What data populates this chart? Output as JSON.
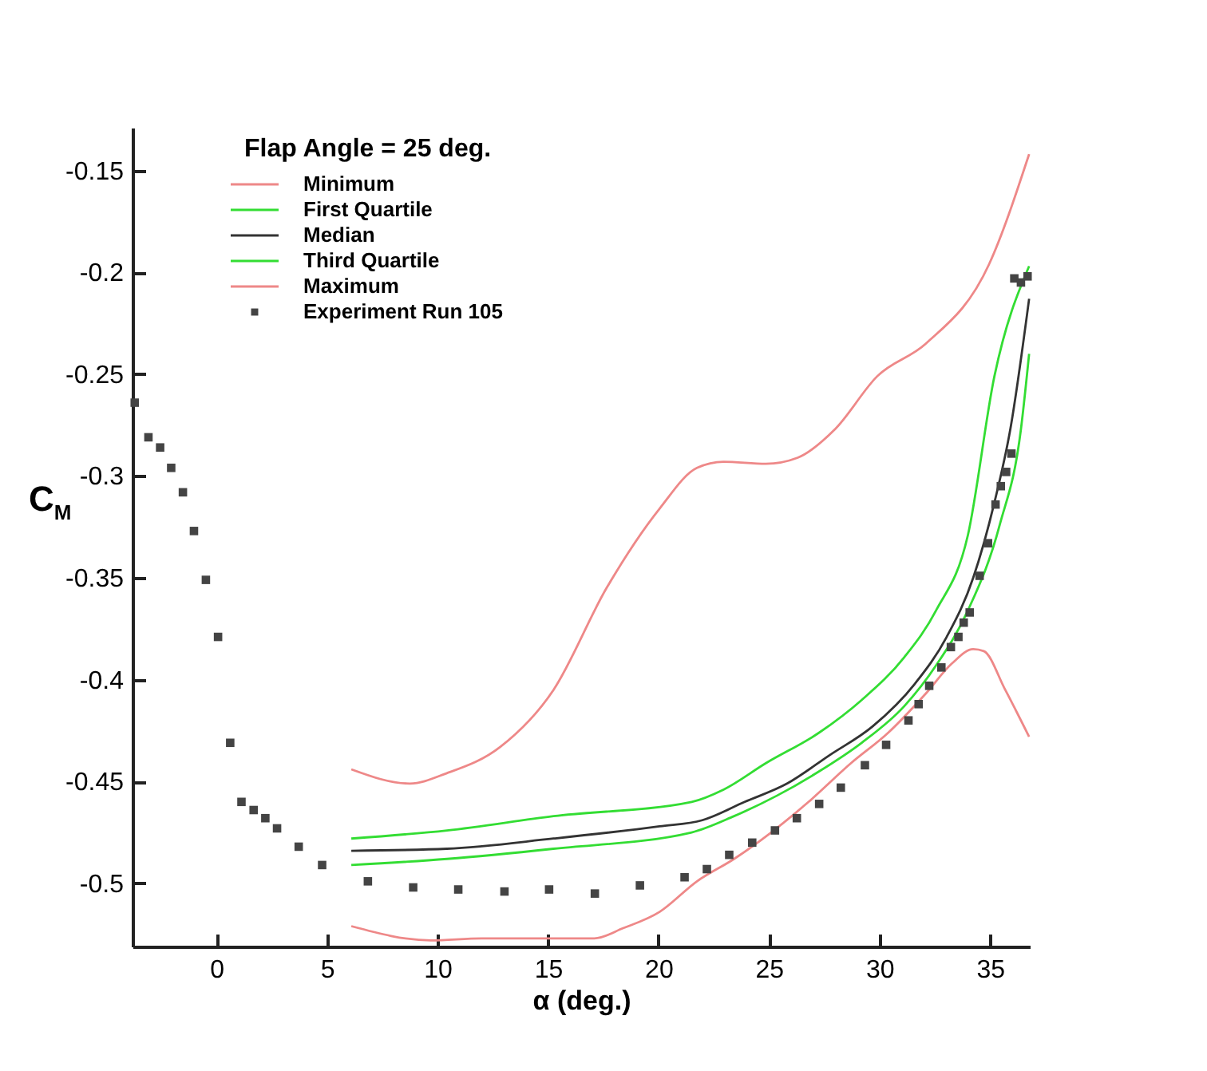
{
  "chart_data": {
    "type": "line",
    "legend_title": "Flap Angle = 25 deg.",
    "xlabel": "α (deg.)",
    "ylabel": "C$_{M}$",
    "xlim": [
      -3.8,
      36.8
    ],
    "ylim": [
      -0.531,
      -0.129
    ],
    "xticks": [
      0,
      5,
      10,
      15,
      20,
      25,
      30,
      35
    ],
    "yticks": [
      -0.5,
      -0.45,
      -0.4,
      -0.35,
      -0.3,
      -0.25,
      -0.2,
      -0.15
    ],
    "grid": false,
    "legend": "top left",
    "series": [
      {
        "name": "Minimum",
        "color": "#ee8888",
        "marker": "none",
        "x": [
          6.1,
          9.7,
          12,
          15,
          17.1,
          18.4,
          20.05,
          21.74,
          23.42,
          25.1,
          26.79,
          28.71,
          30.4,
          32.08,
          33.28,
          34.24,
          34.72,
          35.69,
          36.77
        ],
        "values": [
          -0.521,
          -0.528,
          -0.527,
          -0.527,
          -0.527,
          -0.522,
          -0.514,
          -0.499,
          -0.488,
          -0.475,
          -0.46,
          -0.441,
          -0.426,
          -0.407,
          -0.392,
          -0.385,
          -0.386,
          -0.405,
          -0.428
        ]
      },
      {
        "name": "First Quartile",
        "color": "#33dd33",
        "marker": "none",
        "x": [
          6.1,
          10.43,
          15.25,
          21.5,
          23.42,
          25.35,
          27.27,
          29.19,
          31.12,
          32.56,
          34.0,
          35.44,
          36.4,
          36.77
        ],
        "values": [
          -0.491,
          -0.488,
          -0.483,
          -0.475,
          -0.467,
          -0.457,
          -0.445,
          -0.431,
          -0.413,
          -0.393,
          -0.366,
          -0.324,
          -0.277,
          -0.24
        ]
      },
      {
        "name": "Median",
        "color": "#333333",
        "marker": "none",
        "x": [
          6.1,
          10.43,
          15.25,
          20.05,
          21.98,
          23.9,
          25.82,
          27.75,
          29.68,
          31.6,
          33.04,
          34.24,
          35.2,
          35.92,
          36.77
        ],
        "values": [
          -0.484,
          -0.483,
          -0.478,
          -0.472,
          -0.469,
          -0.46,
          -0.451,
          -0.437,
          -0.423,
          -0.402,
          -0.379,
          -0.35,
          -0.313,
          -0.277,
          -0.213
        ]
      },
      {
        "name": "Third Quartile",
        "color": "#33dd33",
        "marker": "none",
        "x": [
          6.1,
          10.43,
          15.25,
          21.5,
          22.94,
          24.86,
          27.27,
          29.19,
          31.12,
          32.56,
          34.0,
          35.2,
          36.77
        ],
        "values": [
          -0.478,
          -0.474,
          -0.467,
          -0.46,
          -0.454,
          -0.441,
          -0.426,
          -0.41,
          -0.389,
          -0.366,
          -0.329,
          -0.251,
          -0.197
        ]
      },
      {
        "name": "Maximum",
        "color": "#ee8888",
        "marker": "none",
        "x": [
          6.1,
          8.75,
          10.4,
          12.84,
          15.25,
          17.65,
          20.05,
          21.74,
          22.94,
          24.86,
          26.3,
          27.99,
          29.9,
          32.1,
          34.96,
          36.77
        ],
        "values": [
          -0.444,
          -0.451,
          -0.446,
          -0.433,
          -0.405,
          -0.355,
          -0.316,
          -0.296,
          -0.293,
          -0.294,
          -0.291,
          -0.277,
          -0.251,
          -0.235,
          -0.196,
          -0.142
        ]
      },
      {
        "name": "Experiment Run 105",
        "type": "scatter",
        "color": "#444444",
        "marker": "square",
        "x": [
          -3.7,
          -3.08,
          -2.55,
          -2.05,
          -1.52,
          -1.02,
          -0.48,
          0.07,
          0.62,
          1.13,
          1.68,
          2.21,
          2.74,
          3.72,
          4.78,
          6.85,
          8.9,
          10.94,
          13.03,
          15.05,
          17.12,
          19.16,
          21.18,
          22.19,
          23.2,
          24.24,
          25.27,
          26.26,
          27.27,
          28.25,
          29.34,
          30.3,
          31.31,
          31.77,
          32.25,
          32.8,
          33.23,
          33.57,
          33.81,
          34.08,
          34.53,
          34.91,
          35.25,
          35.49,
          35.73,
          35.97,
          36.1,
          36.4,
          36.7
        ],
        "values": [
          -0.264,
          -0.281,
          -0.286,
          -0.296,
          -0.308,
          -0.327,
          -0.351,
          -0.379,
          -0.431,
          -0.46,
          -0.464,
          -0.468,
          -0.473,
          -0.482,
          -0.491,
          -0.499,
          -0.502,
          -0.503,
          -0.504,
          -0.503,
          -0.505,
          -0.501,
          -0.497,
          -0.493,
          -0.486,
          -0.48,
          -0.474,
          -0.468,
          -0.461,
          -0.453,
          -0.442,
          -0.432,
          -0.42,
          -0.412,
          -0.403,
          -0.394,
          -0.384,
          -0.379,
          -0.372,
          -0.367,
          -0.349,
          -0.333,
          -0.314,
          -0.305,
          -0.298,
          -0.289,
          -0.203,
          -0.205,
          -0.202
        ]
      }
    ]
  }
}
